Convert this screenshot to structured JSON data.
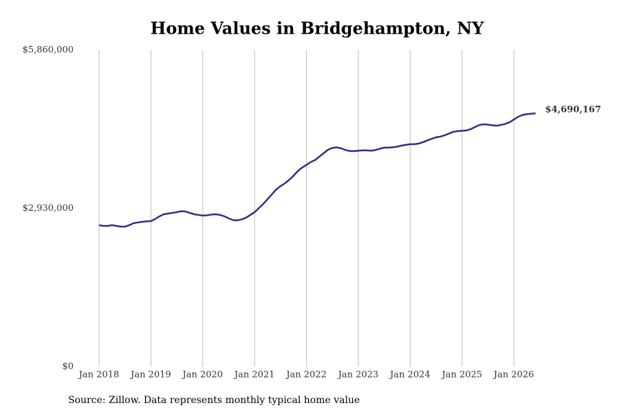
{
  "chart_data": {
    "type": "line",
    "title": "Home Values in Bridgehampton, NY",
    "source": "Source: Zillow. Data represents monthly typical home value",
    "x": [
      "2018-01",
      "2018-02",
      "2018-03",
      "2018-04",
      "2018-05",
      "2018-06",
      "2018-07",
      "2018-08",
      "2018-09",
      "2018-10",
      "2018-11",
      "2018-12",
      "2019-01",
      "2019-02",
      "2019-03",
      "2019-04",
      "2019-05",
      "2019-06",
      "2019-07",
      "2019-08",
      "2019-09",
      "2019-10",
      "2019-11",
      "2019-12",
      "2020-01",
      "2020-02",
      "2020-03",
      "2020-04",
      "2020-05",
      "2020-06",
      "2020-07",
      "2020-08",
      "2020-09",
      "2020-10",
      "2020-11",
      "2020-12",
      "2021-01",
      "2021-02",
      "2021-03",
      "2021-04",
      "2021-05",
      "2021-06",
      "2021-07",
      "2021-08",
      "2021-09",
      "2021-10",
      "2021-11",
      "2021-12",
      "2022-01",
      "2022-02",
      "2022-03",
      "2022-04",
      "2022-05",
      "2022-06",
      "2022-07",
      "2022-08",
      "2022-09",
      "2022-10",
      "2022-11",
      "2022-12",
      "2023-01",
      "2023-02",
      "2023-03",
      "2023-04",
      "2023-05",
      "2023-06",
      "2023-07",
      "2023-08",
      "2023-09",
      "2023-10",
      "2023-11",
      "2023-12",
      "2024-01",
      "2024-02",
      "2024-03",
      "2024-04",
      "2024-05",
      "2024-06",
      "2024-07",
      "2024-08",
      "2024-09",
      "2024-10",
      "2024-11",
      "2024-12",
      "2025-01",
      "2025-02",
      "2025-03",
      "2025-04",
      "2025-05",
      "2025-06",
      "2025-07",
      "2025-08",
      "2025-09",
      "2025-10",
      "2025-11",
      "2025-12",
      "2026-01",
      "2026-02",
      "2026-03",
      "2026-04",
      "2026-05",
      "2026-06"
    ],
    "series": [
      {
        "name": "Typical home value",
        "color": "#2e2e82",
        "values": [
          2620000,
          2606000,
          2606000,
          2620000,
          2606000,
          2593000,
          2593000,
          2620000,
          2657000,
          2670000,
          2682000,
          2690000,
          2695000,
          2733000,
          2784000,
          2822000,
          2835000,
          2847000,
          2860000,
          2879000,
          2873000,
          2847000,
          2822000,
          2809000,
          2797000,
          2803000,
          2816000,
          2822000,
          2809000,
          2784000,
          2746000,
          2714000,
          2708000,
          2727000,
          2758000,
          2809000,
          2860000,
          2936000,
          3013000,
          3102000,
          3191000,
          3280000,
          3343000,
          3394000,
          3458000,
          3534000,
          3623000,
          3686000,
          3737000,
          3788000,
          3826000,
          3890000,
          3953000,
          4017000,
          4049000,
          4061000,
          4042000,
          4011000,
          3992000,
          3992000,
          3998000,
          4004000,
          4004000,
          3998000,
          4011000,
          4036000,
          4055000,
          4055000,
          4061000,
          4074000,
          4093000,
          4106000,
          4119000,
          4119000,
          4131000,
          4157000,
          4189000,
          4220000,
          4246000,
          4259000,
          4284000,
          4316000,
          4348000,
          4360000,
          4367000,
          4373000,
          4398000,
          4436000,
          4475000,
          4487000,
          4481000,
          4468000,
          4462000,
          4475000,
          4494000,
          4525000,
          4576000,
          4627000,
          4660000,
          4675000,
          4682000,
          4690167
        ],
        "value_labels": [
          null,
          null,
          null,
          null,
          null,
          null,
          null,
          null,
          null,
          null,
          null,
          null,
          null,
          null,
          null,
          null,
          null,
          null,
          null,
          null,
          null,
          null,
          null,
          null,
          null,
          null,
          null,
          null,
          null,
          null,
          null,
          null,
          null,
          null,
          null,
          null,
          null,
          null,
          null,
          null,
          null,
          null,
          null,
          null,
          null,
          null,
          null,
          null,
          null,
          null,
          null,
          null,
          null,
          null,
          null,
          null,
          null,
          null,
          null,
          null,
          null,
          null,
          null,
          null,
          null,
          null,
          null,
          null,
          null,
          null,
          null,
          null,
          null,
          null,
          null,
          null,
          null,
          null,
          null,
          null,
          null,
          null,
          null,
          null,
          null,
          null,
          null,
          null,
          null,
          null,
          null,
          null,
          null,
          null,
          null,
          null,
          null,
          null,
          null,
          null,
          null,
          "$4,690,167"
        ]
      }
    ],
    "xticks": [
      {
        "value": "2018-01",
        "label": "Jan 2018"
      },
      {
        "value": "2019-01",
        "label": "Jan 2019"
      },
      {
        "value": "2020-01",
        "label": "Jan 2020"
      },
      {
        "value": "2021-01",
        "label": "Jan 2021"
      },
      {
        "value": "2022-01",
        "label": "Jan 2022"
      },
      {
        "value": "2023-01",
        "label": "Jan 2023"
      },
      {
        "value": "2024-01",
        "label": "Jan 2024"
      },
      {
        "value": "2025-01",
        "label": "Jan 2025"
      },
      {
        "value": "2026-01",
        "label": "Jan 2026"
      }
    ],
    "ylim": [
      0,
      5860000
    ],
    "yticks": [
      {
        "value": 0,
        "label": "$0"
      },
      {
        "value": 2930000,
        "label": "$2,930,000"
      },
      {
        "value": 5860000,
        "label": "$5,860,000"
      }
    ],
    "grid": "x"
  }
}
